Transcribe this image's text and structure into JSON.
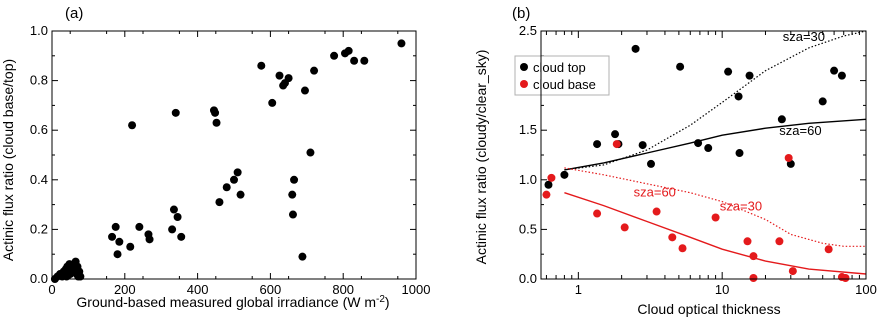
{
  "chart_data": [
    {
      "type": "scatter",
      "panel_label": "(a)",
      "xlabel": "Ground-based measured global irradiance (W m",
      "xlabel_sup": "-2",
      "xlabel_end": ")",
      "ylabel": "Actinic flux ratio (cloud base/top)",
      "xlim": [
        0,
        1000
      ],
      "ylim": [
        0,
        1.0
      ],
      "xticks": [
        0,
        200,
        400,
        600,
        800,
        1000
      ],
      "xtick_labels": [
        "0",
        "200",
        "400",
        "600",
        "800",
        "1000"
      ],
      "yticks": [
        0.0,
        0.2,
        0.4,
        0.6,
        0.8,
        1.0
      ],
      "ytick_labels": [
        "0.0",
        "0.2",
        "0.4",
        "0.6",
        "0.8",
        "1.0"
      ],
      "marker_color": "#000000",
      "points": [
        [
          8,
          0.0
        ],
        [
          15,
          0.01
        ],
        [
          22,
          0.02
        ],
        [
          28,
          0.01
        ],
        [
          32,
          0.03
        ],
        [
          35,
          0.02
        ],
        [
          38,
          0.04
        ],
        [
          40,
          0.01
        ],
        [
          42,
          0.05
        ],
        [
          45,
          0.03
        ],
        [
          48,
          0.06
        ],
        [
          50,
          0.02
        ],
        [
          52,
          0.04
        ],
        [
          55,
          0.05
        ],
        [
          58,
          0.03
        ],
        [
          60,
          0.06
        ],
        [
          62,
          0.04
        ],
        [
          65,
          0.07
        ],
        [
          68,
          0.02
        ],
        [
          70,
          0.05
        ],
        [
          72,
          0.01
        ],
        [
          75,
          0.03
        ],
        [
          78,
          0.01
        ],
        [
          165,
          0.17
        ],
        [
          175,
          0.21
        ],
        [
          185,
          0.15
        ],
        [
          180,
          0.1
        ],
        [
          215,
          0.13
        ],
        [
          220,
          0.62
        ],
        [
          240,
          0.21
        ],
        [
          265,
          0.18
        ],
        [
          268,
          0.16
        ],
        [
          330,
          0.2
        ],
        [
          335,
          0.28
        ],
        [
          340,
          0.67
        ],
        [
          345,
          0.25
        ],
        [
          355,
          0.17
        ],
        [
          445,
          0.68
        ],
        [
          448,
          0.67
        ],
        [
          452,
          0.63
        ],
        [
          460,
          0.31
        ],
        [
          480,
          0.37
        ],
        [
          500,
          0.4
        ],
        [
          510,
          0.43
        ],
        [
          518,
          0.34
        ],
        [
          575,
          0.86
        ],
        [
          605,
          0.71
        ],
        [
          625,
          0.82
        ],
        [
          635,
          0.78
        ],
        [
          640,
          0.79
        ],
        [
          650,
          0.81
        ],
        [
          660,
          0.34
        ],
        [
          662,
          0.26
        ],
        [
          665,
          0.4
        ],
        [
          688,
          0.09
        ],
        [
          695,
          0.76
        ],
        [
          710,
          0.51
        ],
        [
          720,
          0.84
        ],
        [
          775,
          0.9
        ],
        [
          805,
          0.91
        ],
        [
          815,
          0.92
        ],
        [
          830,
          0.88
        ],
        [
          858,
          0.88
        ],
        [
          960,
          0.95
        ]
      ]
    },
    {
      "type": "scatter",
      "panel_label": "(b)",
      "xlabel": "Cloud optical thickness",
      "ylabel": "Actinic flux ratio (cloudy/clear_sky)",
      "xscale": "log",
      "xlim": [
        0.55,
        100
      ],
      "ylim": [
        0,
        2.5
      ],
      "xticks": [
        1,
        10,
        100
      ],
      "xtick_labels": [
        "1",
        "10",
        "100"
      ],
      "yticks": [
        0.0,
        0.5,
        1.0,
        1.5,
        2.0,
        2.5
      ],
      "ytick_labels": [
        "0.0",
        "0.5",
        "1.0",
        "1.5",
        "2.0",
        "2.5"
      ],
      "legend_position": "top-left",
      "series": [
        {
          "name": "cloud top",
          "color": "#000000",
          "points": [
            [
              0.62,
              0.95
            ],
            [
              0.8,
              1.05
            ],
            [
              1.35,
              1.36
            ],
            [
              1.8,
              1.46
            ],
            [
              1.9,
              1.36
            ],
            [
              2.5,
              2.32
            ],
            [
              2.8,
              1.35
            ],
            [
              3.2,
              1.16
            ],
            [
              5.1,
              2.14
            ],
            [
              6.8,
              1.37
            ],
            [
              8.0,
              1.32
            ],
            [
              11.0,
              2.09
            ],
            [
              13.0,
              1.84
            ],
            [
              13.2,
              1.27
            ],
            [
              15.5,
              2.05
            ],
            [
              26.0,
              1.61
            ],
            [
              30.0,
              1.16
            ],
            [
              50.0,
              1.79
            ],
            [
              60.0,
              2.1
            ],
            [
              68.0,
              2.05
            ]
          ]
        },
        {
          "name": "cloud base",
          "color": "#e41a1c",
          "points": [
            [
              0.6,
              0.85
            ],
            [
              0.65,
              1.02
            ],
            [
              1.35,
              0.66
            ],
            [
              1.85,
              1.36
            ],
            [
              2.1,
              0.52
            ],
            [
              3.5,
              0.68
            ],
            [
              4.5,
              0.42
            ],
            [
              5.3,
              0.31
            ],
            [
              9.0,
              0.62
            ],
            [
              15.0,
              0.38
            ],
            [
              16.5,
              0.23
            ],
            [
              16.5,
              0.01
            ],
            [
              25.0,
              0.38
            ],
            [
              29.0,
              1.22
            ],
            [
              31.0,
              0.08
            ],
            [
              55.0,
              0.3
            ],
            [
              68.0,
              0.02
            ],
            [
              72.0,
              0.01
            ]
          ]
        }
      ],
      "model_curves": [
        {
          "label": "sza=30",
          "color": "#000000",
          "dash": "dot",
          "points": [
            [
              0.8,
              1.1
            ],
            [
              1.5,
              1.15
            ],
            [
              3,
              1.3
            ],
            [
              6,
              1.55
            ],
            [
              10,
              1.78
            ],
            [
              20,
              2.1
            ],
            [
              40,
              2.33
            ],
            [
              70,
              2.45
            ],
            [
              100,
              2.5
            ]
          ]
        },
        {
          "label": "sza=60",
          "color": "#000000",
          "dash": "solid",
          "points": [
            [
              0.8,
              1.1
            ],
            [
              1.5,
              1.17
            ],
            [
              3,
              1.27
            ],
            [
              6,
              1.37
            ],
            [
              10,
              1.45
            ],
            [
              20,
              1.52
            ],
            [
              40,
              1.57
            ],
            [
              100,
              1.61
            ]
          ]
        },
        {
          "label": "sza=30",
          "color": "#e41a1c",
          "dash": "dot",
          "points": [
            [
              0.8,
              1.12
            ],
            [
              1.5,
              1.05
            ],
            [
              3,
              0.96
            ],
            [
              6,
              0.87
            ],
            [
              10,
              0.78
            ],
            [
              20,
              0.6
            ],
            [
              30,
              0.45
            ],
            [
              50,
              0.36
            ],
            [
              70,
              0.33
            ],
            [
              100,
              0.33
            ]
          ]
        },
        {
          "label": "sza=60",
          "color": "#e41a1c",
          "dash": "solid",
          "points": [
            [
              0.8,
              0.87
            ],
            [
              1.5,
              0.74
            ],
            [
              3,
              0.58
            ],
            [
              6,
              0.42
            ],
            [
              10,
              0.3
            ],
            [
              20,
              0.18
            ],
            [
              40,
              0.1
            ],
            [
              100,
              0.05
            ]
          ]
        }
      ],
      "annotations": [
        {
          "text": "sza=30",
          "color": "#000000",
          "x": 37,
          "y": 2.4
        },
        {
          "text": "sza=60",
          "color": "#000000",
          "x": 35,
          "y": 1.45
        },
        {
          "text": "sza=60",
          "color": "#e41a1c",
          "x": 3.4,
          "y": 0.83
        },
        {
          "text": "sza=30",
          "color": "#e41a1c",
          "x": 13.5,
          "y": 0.69
        }
      ]
    }
  ]
}
